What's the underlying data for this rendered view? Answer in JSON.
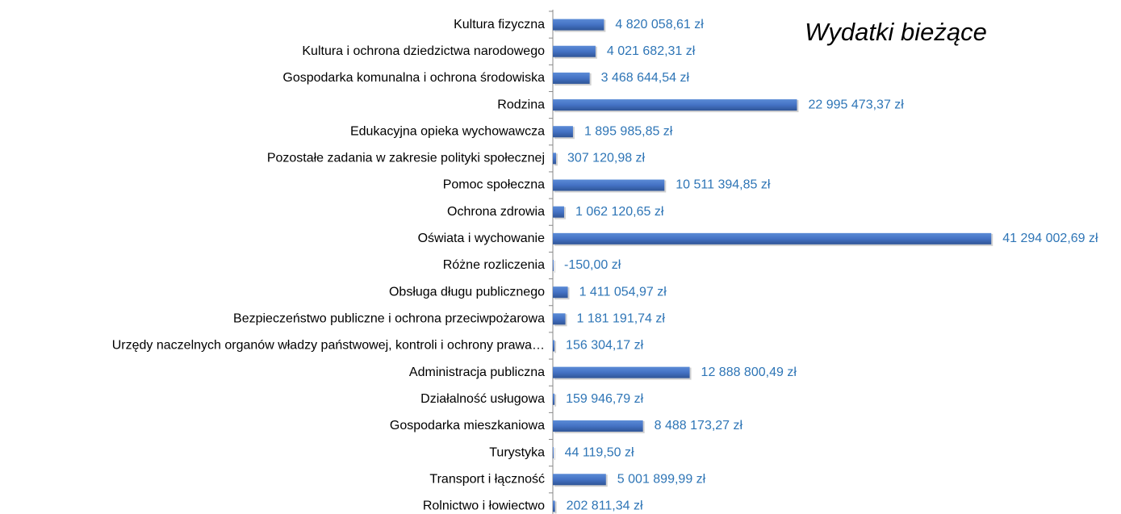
{
  "chart_data": {
    "type": "hbar",
    "title": "Wydatki bieżące",
    "categories": [
      "Kultura fizyczna",
      "Kultura i ochrona dziedzictwa narodowego",
      "Gospodarka komunalna i ochrona środowiska",
      "Rodzina",
      "Edukacyjna opieka wychowawcza",
      "Pozostałe zadania w zakresie polityki społecznej",
      "Pomoc społeczna",
      "Ochrona zdrowia",
      "Oświata i wychowanie",
      "Różne rozliczenia",
      "Obsługa długu publicznego",
      "Bezpieczeństwo publiczne i ochrona przeciwpożarowa",
      "Urzędy naczelnych organów władzy państwowej, kontroli i ochrony prawa…",
      "Administracja publiczna",
      "Działalność usługowa",
      "Gospodarka mieszkaniowa",
      "Turystyka",
      "Transport i łączność",
      "Rolnictwo i łowiectwo"
    ],
    "values": [
      4820058.61,
      4021682.31,
      3468644.54,
      22995473.37,
      1895985.85,
      307120.98,
      10511394.85,
      1062120.65,
      41294002.69,
      -150.0,
      1411054.97,
      1181191.74,
      156304.17,
      12888800.49,
      159946.79,
      8488173.27,
      44119.5,
      5001899.99,
      202811.34
    ],
    "value_labels": [
      "4 820 058,61 zł",
      "4 021 682,31 zł",
      "3 468 644,54 zł",
      "22 995 473,37 zł",
      "1 895 985,85 zł",
      "307 120,98 zł",
      "10 511 394,85 zł",
      "1 062 120,65 zł",
      "41 294 002,69 zł",
      "-150,00 zł",
      "1 411 054,97 zł",
      "1 181 191,74 zł",
      "156 304,17 zł",
      "12 888 800,49 zł",
      "159 946,79 zł",
      "8 488 173,27 zł",
      "44 119,50 zł",
      "5 001 899,99 zł",
      "202 811,34 zł"
    ],
    "color": "#4472c4",
    "label_color": "#2e75b6",
    "xlim": [
      0,
      45000000
    ]
  }
}
